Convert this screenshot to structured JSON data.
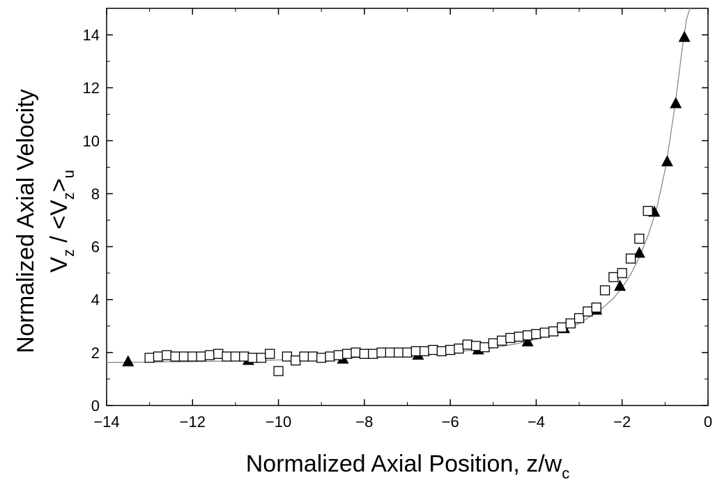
{
  "chart_data": {
    "type": "scatter",
    "title": "",
    "xlabel": {
      "main": "Normalized Axial Position, z/w",
      "sub": "c"
    },
    "ylabel": {
      "line1": "Normalized Axial Velocity",
      "line2": {
        "v": "V",
        "sub1": "z",
        "mid": " / <V",
        "sub2": "z",
        "close": ">",
        "sub3": "u"
      }
    },
    "xlim": [
      -14,
      0
    ],
    "ylim": [
      0,
      15
    ],
    "xticks": [
      -14,
      -12,
      -10,
      -8,
      -6,
      -4,
      -2,
      0
    ],
    "yticks": [
      0,
      2,
      4,
      6,
      8,
      10,
      12,
      14
    ],
    "grid": false,
    "legend": "none",
    "series": [
      {
        "marker": "triangle-filled",
        "color": "#000000",
        "x": [
          -13.5,
          -10.7,
          -8.5,
          -6.75,
          -5.35,
          -4.2,
          -3.35,
          -2.6,
          -2.05,
          -1.6,
          -1.25,
          -0.95,
          -0.75,
          -0.55
        ],
        "y": [
          1.65,
          1.7,
          1.75,
          1.9,
          2.1,
          2.4,
          2.9,
          3.6,
          4.5,
          5.75,
          7.3,
          9.2,
          11.4,
          13.9
        ]
      },
      {
        "marker": "square-open",
        "color": "#000000",
        "x": [
          -13.0,
          -12.8,
          -12.6,
          -12.4,
          -12.2,
          -12.0,
          -11.8,
          -11.6,
          -11.4,
          -11.2,
          -11.0,
          -10.8,
          -10.6,
          -10.4,
          -10.2,
          -10.0,
          -9.8,
          -9.6,
          -9.4,
          -9.2,
          -9.0,
          -8.8,
          -8.6,
          -8.4,
          -8.2,
          -8.0,
          -7.8,
          -7.6,
          -7.4,
          -7.2,
          -7.0,
          -6.8,
          -6.6,
          -6.4,
          -6.2,
          -6.0,
          -5.8,
          -5.6,
          -5.4,
          -5.2,
          -5.0,
          -4.8,
          -4.6,
          -4.4,
          -4.2,
          -4.0,
          -3.8,
          -3.6,
          -3.4,
          -3.2,
          -3.0,
          -2.8,
          -2.6,
          -2.4,
          -2.2,
          -2.0,
          -1.8,
          -1.6,
          -1.4
        ],
        "y": [
          1.8,
          1.85,
          1.9,
          1.85,
          1.85,
          1.85,
          1.85,
          1.9,
          1.95,
          1.85,
          1.85,
          1.85,
          1.8,
          1.8,
          1.95,
          1.3,
          1.85,
          1.7,
          1.85,
          1.85,
          1.8,
          1.85,
          1.9,
          1.95,
          2.0,
          1.95,
          1.95,
          2.0,
          2.0,
          2.0,
          2.0,
          2.05,
          2.05,
          2.1,
          2.05,
          2.1,
          2.15,
          2.3,
          2.25,
          2.2,
          2.35,
          2.45,
          2.55,
          2.6,
          2.65,
          2.7,
          2.75,
          2.8,
          2.95,
          3.1,
          3.3,
          3.55,
          3.7,
          4.35,
          4.85,
          5.0,
          5.55,
          6.3,
          7.35
        ]
      }
    ],
    "fit_curve": {
      "color": "#888888",
      "x": [
        -14.0,
        -13.0,
        -12.0,
        -11.0,
        -10.0,
        -9.0,
        -8.0,
        -7.0,
        -6.0,
        -5.0,
        -4.5,
        -4.0,
        -3.5,
        -3.0,
        -2.5,
        -2.2,
        -2.0,
        -1.8,
        -1.6,
        -1.4,
        -1.2,
        -1.0,
        -0.9,
        -0.8,
        -0.7,
        -0.6,
        -0.5,
        -0.42
      ],
      "y": [
        1.62,
        1.64,
        1.66,
        1.68,
        1.72,
        1.76,
        1.82,
        1.9,
        2.0,
        2.18,
        2.32,
        2.5,
        2.75,
        3.1,
        3.62,
        4.05,
        4.45,
        4.95,
        5.6,
        6.4,
        7.4,
        8.9,
        9.9,
        11.0,
        12.2,
        13.5,
        14.6,
        15.0
      ]
    }
  }
}
